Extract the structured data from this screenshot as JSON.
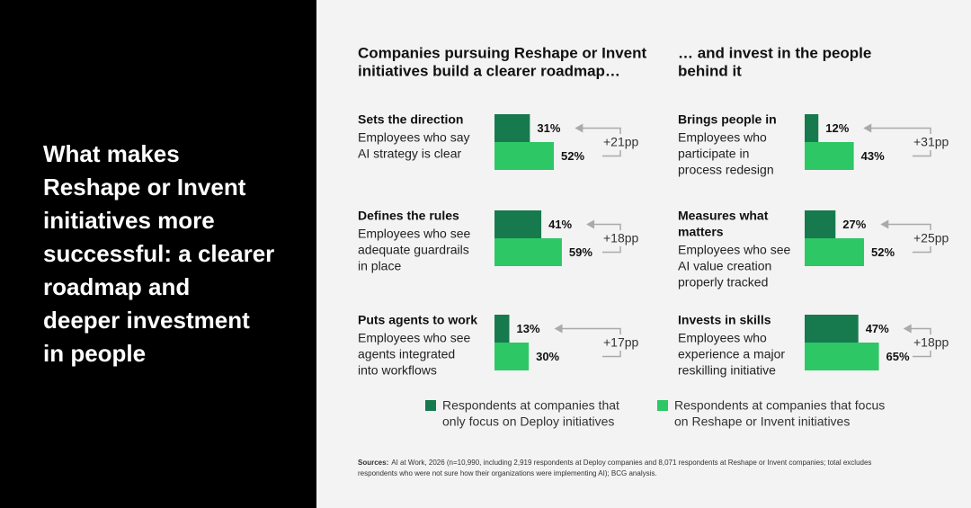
{
  "headline": [
    "What makes",
    "Reshape or Invent",
    "initiatives more",
    "successful: a clearer",
    "roadmap and",
    "deeper investment",
    "in people"
  ],
  "panels": [
    {
      "title": [
        "Companies pursuing Reshape or Invent",
        "initiatives build a clearer roadmap…"
      ],
      "items": [
        {
          "label": [
            "Sets the direction"
          ],
          "description": [
            "Employees who say",
            "AI strategy is clear"
          ],
          "values": [
            31,
            52
          ],
          "value_labels": [
            "31%",
            "52%"
          ],
          "difference": "+21pp"
        },
        {
          "label": [
            "Defines the rules"
          ],
          "description": [
            "Employees who see",
            "adequate guardrails",
            "in place"
          ],
          "values": [
            41,
            59
          ],
          "value_labels": [
            "41%",
            "59%"
          ],
          "difference": "+18pp"
        },
        {
          "label": [
            "Puts agents to work"
          ],
          "description": [
            "Employees who see",
            "agents integrated",
            "into workflows"
          ],
          "values": [
            13,
            30
          ],
          "value_labels": [
            "13%",
            "30%"
          ],
          "difference": "+17pp"
        }
      ]
    },
    {
      "title": [
        "… and invest in the people",
        "behind it"
      ],
      "items": [
        {
          "label": [
            "Brings people in"
          ],
          "description": [
            "Employees who",
            "participate in",
            "process redesign"
          ],
          "values": [
            12,
            43
          ],
          "value_labels": [
            "12%",
            "43%"
          ],
          "difference": "+31pp"
        },
        {
          "label": [
            "Measures what",
            "matters"
          ],
          "description": [
            "Employees who see",
            "AI value creation",
            "properly tracked"
          ],
          "values": [
            27,
            52
          ],
          "value_labels": [
            "27%",
            "52%"
          ],
          "difference": "+25pp"
        },
        {
          "label": [
            "Invests in skills"
          ],
          "description": [
            "Employees who",
            "experience a major",
            "reskilling initiative"
          ],
          "values": [
            47,
            65
          ],
          "value_labels": [
            "47%",
            "65%"
          ],
          "difference": "+18pp"
        }
      ]
    }
  ],
  "legend": [
    {
      "name": [
        "Respondents at companies that",
        "only focus on Deploy initiatives"
      ],
      "color": "#177a4e"
    },
    {
      "name": [
        "Respondents at companies that focus",
        "on Reshape or Invent initiatives"
      ],
      "color": "#2ec765"
    }
  ],
  "source": {
    "label": "Sources:",
    "text": [
      "AI at Work, 2026 (n=10,990, including 2,919 respondents at Deploy companies and 8,071 respondents at Reshape or Invent companies; total excludes",
      "respondents who were not sure how their organizations were implementing AI); BCG analysis."
    ]
  }
}
